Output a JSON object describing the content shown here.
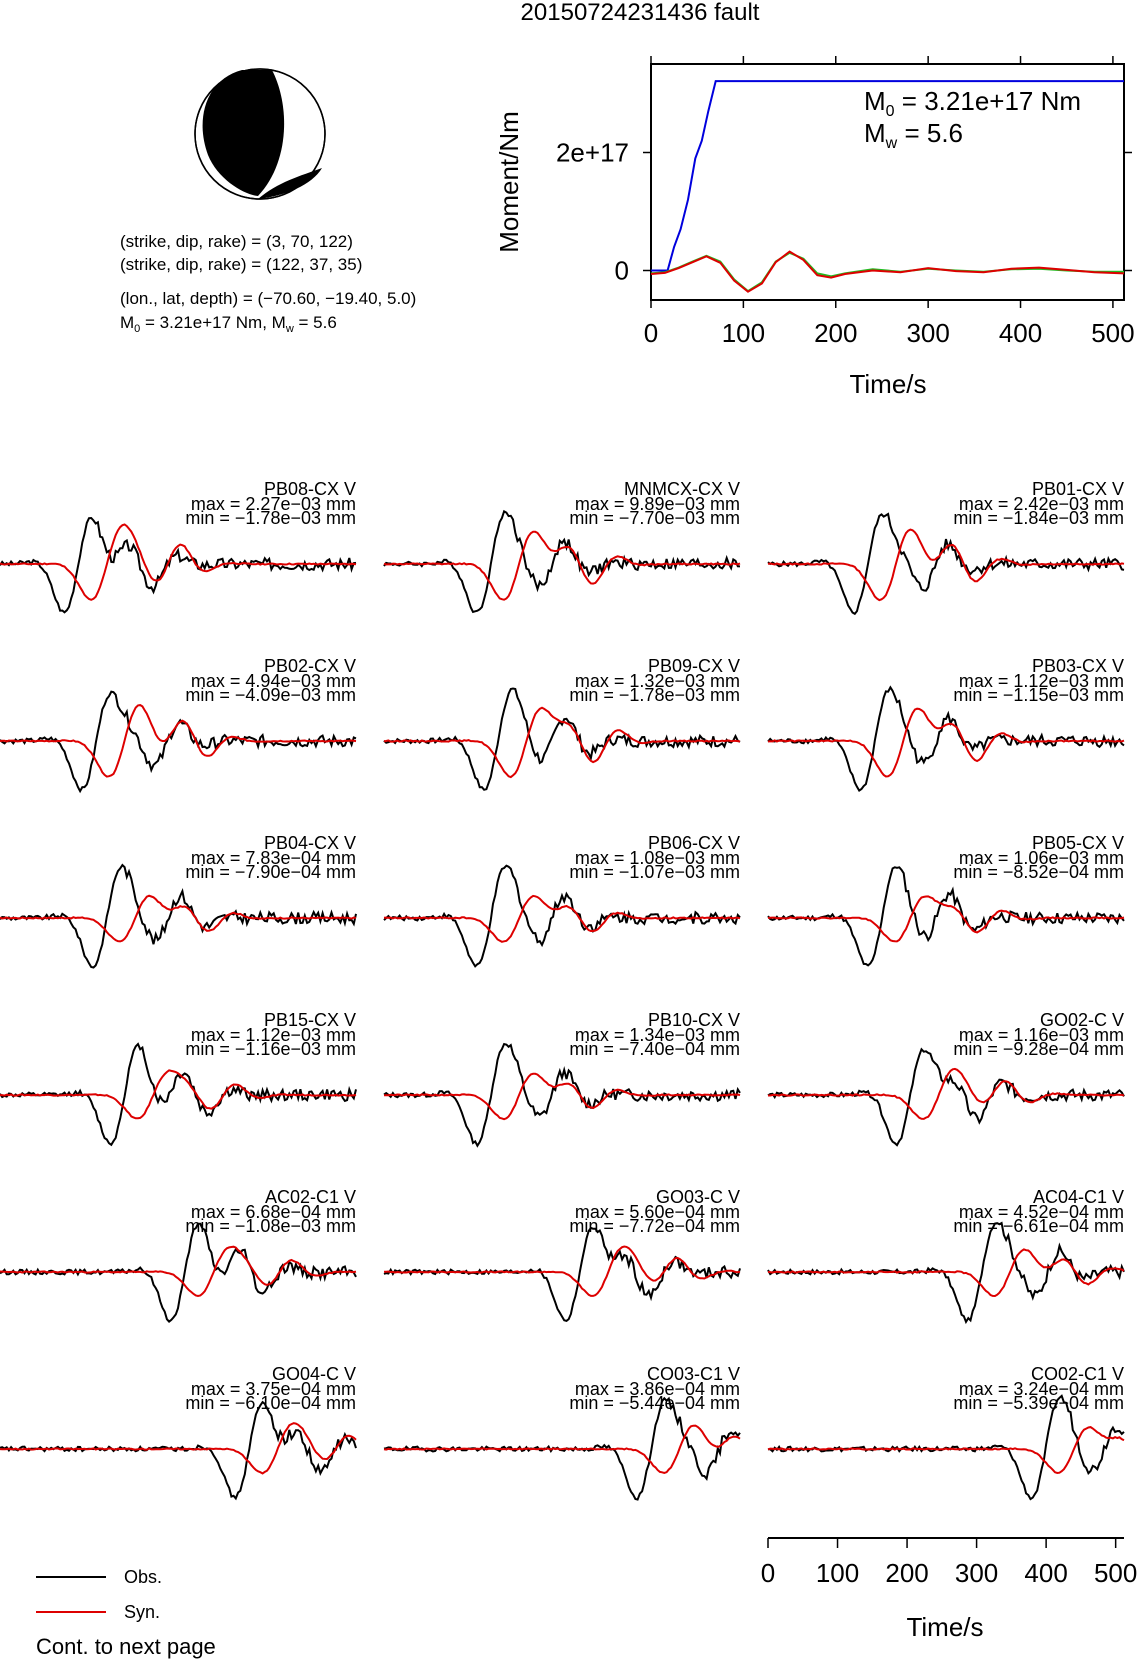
{
  "title": "20150724231436 fault",
  "mechanism": {
    "line1": "(strike, dip, rake) = (3, 70, 122)",
    "line2": "(strike, dip, rake) = (122, 37, 35)",
    "line3": "(lon., lat, depth) = (−70.60, −19.40, 5.0)",
    "line4_prefix": "M",
    "line4_sub0": "0",
    "line4_mid": " = 3.21e+17 Nm, M",
    "line4_subw": "w",
    "line4_suffix": " = 5.6"
  },
  "stf_chart": {
    "type": "line",
    "ylabel": "Moment/Nm",
    "xlabel": "Time/s",
    "xlim": [
      0,
      512
    ],
    "ylim": [
      -5e+16,
      3.5e+17
    ],
    "x_ticks": [
      "0",
      "100",
      "200",
      "300",
      "400",
      "500"
    ],
    "x_tick_values": [
      0,
      100,
      200,
      300,
      400,
      500
    ],
    "y_ticks": [
      "0",
      "2e+17"
    ],
    "y_tick_values": [
      0,
      2e+17
    ],
    "annot_m0_prefix": "M",
    "annot_m0_sub": "0",
    "annot_m0_value": " = 3.21e+17 Nm",
    "annot_mw_prefix": "M",
    "annot_mw_sub": "w",
    "annot_mw_value": " = 5.6",
    "series": [
      {
        "color": "#0000dd",
        "x": [
          0,
          18,
          25,
          32,
          40,
          48,
          55,
          62,
          70,
          512
        ],
        "y": [
          0,
          0,
          4e+16,
          7e+16,
          1.2e+17,
          1.9e+17,
          2.2e+17,
          2.7e+17,
          3.21e+17,
          3.21e+17
        ]
      },
      {
        "color": "#22bb22",
        "x": [
          0,
          15,
          30,
          45,
          60,
          75,
          90,
          105,
          120,
          135,
          150,
          165,
          180,
          195,
          210,
          240,
          270,
          300,
          330,
          360,
          390,
          420,
          450,
          480,
          512
        ],
        "y": [
          -5000000000000000.0,
          -3000000000000000.0,
          5000000000000000.0,
          1.5e+16,
          2.5e+16,
          1.5e+16,
          -1.5e+16,
          -3.5e+16,
          -2e+16,
          1.5e+16,
          3e+16,
          2e+16,
          -5000000000000000.0,
          -1e+16,
          -5000000000000000.0,
          2000000000000000.0,
          -2000000000000000.0,
          3000000000000000.0,
          0.0,
          -2000000000000000.0,
          2000000000000000.0,
          3000000000000000.0,
          0.0,
          -2000000000000000.0,
          -2000000000000000.0
        ]
      },
      {
        "color": "#dd0000",
        "x": [
          0,
          15,
          30,
          45,
          60,
          75,
          90,
          105,
          120,
          135,
          150,
          165,
          180,
          195,
          210,
          240,
          270,
          300,
          330,
          360,
          390,
          420,
          450,
          480,
          512
        ],
        "y": [
          -6000000000000000.0,
          -4000000000000000.0,
          4000000000000000.0,
          1.4e+16,
          2.4e+16,
          1.3e+16,
          -1.7e+16,
          -3.6e+16,
          -2.2e+16,
          1.4e+16,
          3.2e+16,
          1.8e+16,
          -8000000000000000.0,
          -1.2e+16,
          -6000000000000000.0,
          0.0,
          -3000000000000000.0,
          4000000000000000.0,
          -1000000000000000.0,
          -3000000000000000.0,
          3000000000000000.0,
          5000000000000000.0,
          1000000000000000.0,
          -3000000000000000.0,
          -5000000000000000.0
        ]
      }
    ]
  },
  "stations": [
    {
      "name": "PB08-CX V",
      "max": "max = 2.27e−03 mm",
      "min": "min = −1.78e−03 mm"
    },
    {
      "name": "MNMCX-CX V",
      "max": "max = 9.89e−03 mm",
      "min": "min = −7.70e−03 mm"
    },
    {
      "name": "PB01-CX V",
      "max": "max = 2.42e−03 mm",
      "min": "min = −1.84e−03 mm"
    },
    {
      "name": "PB02-CX V",
      "max": "max = 4.94e−03 mm",
      "min": "min = −4.09e−03 mm"
    },
    {
      "name": "PB09-CX V",
      "max": "max = 1.32e−03 mm",
      "min": "min = −1.78e−03 mm"
    },
    {
      "name": "PB03-CX V",
      "max": "max = 1.12e−03 mm",
      "min": "min = −1.15e−03 mm"
    },
    {
      "name": "PB04-CX V",
      "max": "max = 7.83e−04 mm",
      "min": "min = −7.90e−04 mm"
    },
    {
      "name": "PB06-CX V",
      "max": "max = 1.08e−03 mm",
      "min": "min = −1.07e−03 mm"
    },
    {
      "name": "PB05-CX V",
      "max": "max = 1.06e−03 mm",
      "min": "min = −8.52e−04 mm"
    },
    {
      "name": "PB15-CX V",
      "max": "max = 1.12e−03 mm",
      "min": "min = −1.16e−03 mm"
    },
    {
      "name": "PB10-CX V",
      "max": "max = 1.34e−03 mm",
      "min": "min = −7.40e−04 mm"
    },
    {
      "name": "GO02-C V",
      "max": "max = 1.16e−03 mm",
      "min": "min = −9.28e−04 mm"
    },
    {
      "name": "AC02-C1 V",
      "max": "max = 6.68e−04 mm",
      "min": "min = −1.08e−03 mm"
    },
    {
      "name": "GO03-C V",
      "max": "max = 5.60e−04 mm",
      "min": "min = −7.72e−04 mm"
    },
    {
      "name": "AC04-C1 V",
      "max": "max = 4.52e−04 mm",
      "min": "min = −6.61e−04 mm"
    },
    {
      "name": "GO04-C V",
      "max": "max = 3.75e−04 mm",
      "min": "min = −6.10e−04 mm"
    },
    {
      "name": "CO03-C1 V",
      "max": "max = 3.86e−04 mm",
      "min": "min = −5.44e−04 mm"
    },
    {
      "name": "CO02-C1 V",
      "max": "max = 3.24e−04 mm",
      "min": "min = −5.39e−04 mm"
    }
  ],
  "bottom_axis": {
    "xlabel": "Time/s",
    "xlim": [
      0,
      512
    ],
    "ticks": [
      "0",
      "100",
      "200",
      "300",
      "400",
      "500"
    ],
    "tick_values": [
      0,
      100,
      200,
      300,
      400,
      500
    ]
  },
  "legend": {
    "obs_label": "Obs.",
    "obs_color": "#000000",
    "syn_label": "Syn.",
    "syn_color": "#dd0000"
  },
  "footer": "Cont. to next page"
}
